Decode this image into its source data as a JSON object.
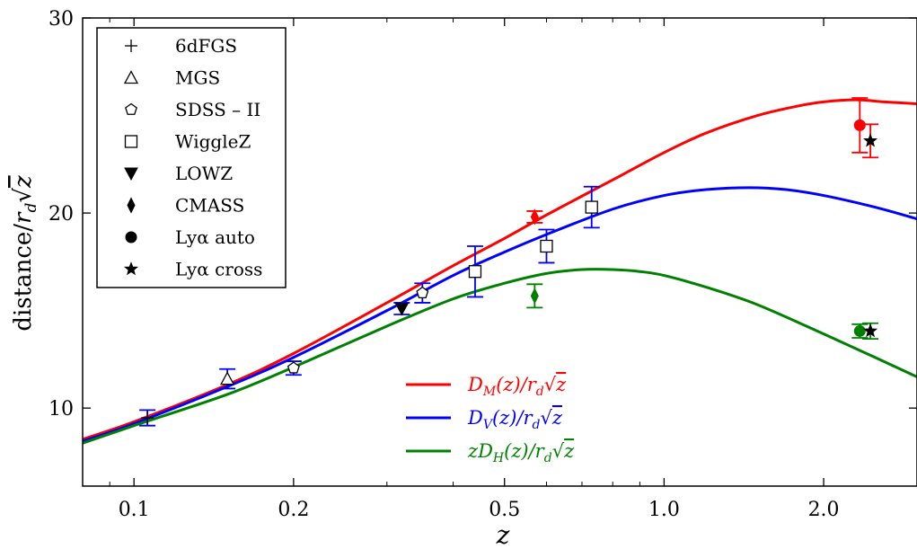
{
  "chart_data": {
    "type": "scatter",
    "xlabel": "z",
    "ylabel": "distance/r_d√z",
    "xscale": "log",
    "xlim": [
      0.08,
      3.0
    ],
    "ylim": [
      6,
      30
    ],
    "grid": false,
    "xticks": [
      {
        "value": 0.1,
        "label": "0.1"
      },
      {
        "value": 0.2,
        "label": "0.2"
      },
      {
        "value": 0.5,
        "label": "0.5"
      },
      {
        "value": 1.0,
        "label": "1.0"
      },
      {
        "value": 2.0,
        "label": "2.0"
      }
    ],
    "yticks": [
      {
        "value": 10,
        "label": "10"
      },
      {
        "value": 20,
        "label": "20"
      },
      {
        "value": 30,
        "label": "30"
      }
    ],
    "marker_legend": {
      "placement": "top-left",
      "entries": [
        {
          "label": "6dFGS",
          "marker": "plus"
        },
        {
          "label": "MGS",
          "marker": "triangle-open"
        },
        {
          "label": "SDSS – II",
          "marker": "pentagon-open"
        },
        {
          "label": "WiggleZ",
          "marker": "square-open"
        },
        {
          "label": "LOWZ",
          "marker": "triangle-down-filled"
        },
        {
          "label": "CMASS",
          "marker": "diamond-filled"
        },
        {
          "label": "Lyα auto",
          "marker": "circle-filled"
        },
        {
          "label": "Lyα cross",
          "marker": "star-filled"
        }
      ]
    },
    "curve_legend": {
      "placement": "bottom-center",
      "entries": [
        {
          "prefix": "",
          "sym": "D",
          "sub": "M",
          "tail": "(z)/r",
          "color": "#ff0000"
        },
        {
          "prefix": "",
          "sym": "D",
          "sub": "V",
          "tail": "(z)/r",
          "color": "#0000ff"
        },
        {
          "prefix": "z",
          "sym": "D",
          "sub": "H",
          "tail": "(z)/r",
          "color": "#008000"
        }
      ]
    },
    "curves": [
      {
        "key": "DM",
        "color": "#ff0000",
        "x": [
          0.08,
          0.1,
          0.15,
          0.2,
          0.3,
          0.4,
          0.5,
          0.6,
          0.8,
          1.0,
          1.2,
          1.5,
          1.8,
          2.0,
          2.3,
          2.6,
          3.0
        ],
        "y": [
          8.4,
          9.3,
          11.2,
          12.8,
          15.4,
          17.3,
          18.7,
          19.9,
          21.7,
          23.1,
          24.1,
          25.0,
          25.5,
          25.7,
          25.8,
          25.7,
          25.6
        ]
      },
      {
        "key": "DV",
        "color": "#0000ff",
        "x": [
          0.08,
          0.1,
          0.15,
          0.2,
          0.3,
          0.4,
          0.5,
          0.6,
          0.8,
          1.0,
          1.2,
          1.45,
          1.7,
          2.0,
          2.5,
          3.0
        ],
        "y": [
          8.3,
          9.2,
          11.1,
          12.6,
          15.0,
          16.8,
          18.0,
          18.9,
          20.2,
          20.9,
          21.2,
          21.3,
          21.2,
          20.9,
          20.3,
          19.7
        ]
      },
      {
        "key": "zDH",
        "color": "#008000",
        "x": [
          0.08,
          0.1,
          0.15,
          0.2,
          0.3,
          0.4,
          0.5,
          0.6,
          0.7,
          0.8,
          0.9,
          1.0,
          1.2,
          1.5,
          2.0,
          2.5,
          3.0
        ],
        "y": [
          8.2,
          9.1,
          10.7,
          12.1,
          14.2,
          15.6,
          16.4,
          16.9,
          17.1,
          17.1,
          17.0,
          16.8,
          16.2,
          15.3,
          13.8,
          12.6,
          11.6
        ]
      }
    ],
    "points": [
      {
        "survey": "6dFGS",
        "marker": "plus",
        "color": "#000000",
        "bar": "#0000ff",
        "x": 0.106,
        "y": 9.5,
        "err": 0.4
      },
      {
        "survey": "MGS",
        "marker": "triangle-open",
        "color": "#000000",
        "bar": "#0000ff",
        "x": 0.15,
        "y": 11.5,
        "err": 0.5
      },
      {
        "survey": "SDSS – II",
        "marker": "pentagon-open",
        "color": "#000000",
        "bar": "#0000ff",
        "x": 0.2,
        "y": 12.05,
        "err": 0.35
      },
      {
        "survey": "SDSS – II",
        "marker": "pentagon-open",
        "color": "#000000",
        "bar": "#0000ff",
        "x": 0.35,
        "y": 15.9,
        "err": 0.5
      },
      {
        "survey": "LOWZ",
        "marker": "triangle-down-filled",
        "color": "#000000",
        "bar": "#0000ff",
        "x": 0.32,
        "y": 15.1,
        "err": 0.3
      },
      {
        "survey": "WiggleZ",
        "marker": "square-open",
        "color": "#000000",
        "bar": "#0000ff",
        "x": 0.44,
        "y": 17.0,
        "err": 1.3
      },
      {
        "survey": "WiggleZ",
        "marker": "square-open",
        "color": "#000000",
        "bar": "#0000ff",
        "x": 0.6,
        "y": 18.3,
        "err": 0.85
      },
      {
        "survey": "WiggleZ",
        "marker": "square-open",
        "color": "#000000",
        "bar": "#0000ff",
        "x": 0.73,
        "y": 20.3,
        "err": 1.05
      },
      {
        "survey": "CMASS",
        "marker": "diamond-filled",
        "color": "#ff0000",
        "bar": "#ff0000",
        "x": 0.57,
        "y": 19.8,
        "err": 0.3
      },
      {
        "survey": "CMASS",
        "marker": "diamond-filled",
        "color": "#008000",
        "bar": "#008000",
        "x": 0.57,
        "y": 15.75,
        "err": 0.6
      },
      {
        "survey": "Lyα auto",
        "marker": "circle-filled",
        "color": "#ff0000",
        "bar": "#ff0000",
        "x": 2.34,
        "y": 24.5,
        "err": 1.4
      },
      {
        "survey": "Lyα auto",
        "marker": "circle-filled",
        "color": "#008000",
        "bar": "#008000",
        "x": 2.34,
        "y": 13.95,
        "err": 0.35
      },
      {
        "survey": "Lyα cross",
        "marker": "star-filled",
        "color": "#000000",
        "bar": "#ff0000",
        "x": 2.45,
        "y": 23.7,
        "err": 0.85
      },
      {
        "survey": "Lyα cross",
        "marker": "star-filled",
        "color": "#000000",
        "bar": "#008000",
        "x": 2.45,
        "y": 13.95,
        "err": 0.4
      }
    ]
  }
}
